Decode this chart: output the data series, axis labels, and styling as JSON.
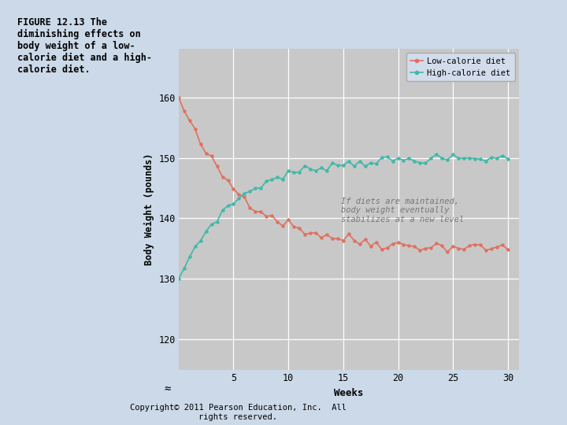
{
  "title_text": "FIGURE 12.13 The\ndiminishing effects on\nbody weight of a low-\ncalorie diet and a high-\ncalorie diet.",
  "xlabel": "Weeks",
  "ylabel": "Body Weight (pounds)",
  "background_color": "#ccd9e8",
  "plot_bg_color": "#c8c8c8",
  "low_calorie_color": "#e07060",
  "high_calorie_color": "#40b8a8",
  "annotation_text": "If diets are maintained,\nbody weight eventually\nstabilizes at a new level",
  "annotation_color": "#777777",
  "copyright_text": "Copyright© 2011 Pearson Education, Inc.  All\nrights reserved.",
  "ylim": [
    115,
    168
  ],
  "xlim": [
    0,
    31
  ],
  "yticks": [
    120,
    130,
    140,
    150,
    160
  ],
  "xticks": [
    5,
    10,
    15,
    20,
    25,
    30
  ],
  "legend_low": "Low-calorie diet",
  "legend_high": "High-calorie diet",
  "fig_width": 7.2,
  "fig_height": 5.4,
  "fig_dpi": 100
}
